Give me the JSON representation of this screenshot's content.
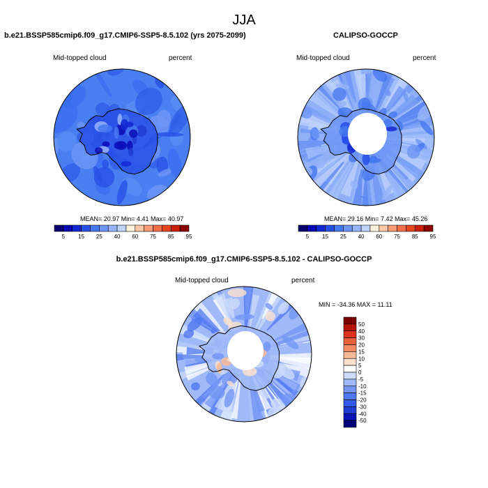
{
  "suptitle": "JJA",
  "panels": [
    {
      "title": "b.e21.BSSP585cmip6.f09_g17.CMIP6-SSP5-8.5.102 (yrs 2075-2099)",
      "left_label": "Mid-topped cloud",
      "right_label": "percent",
      "stats": "MEAN=  20.97  Min=   4.41  Max=  40.97"
    },
    {
      "title": "CALIPSO-GOCCP",
      "left_label": "Mid-topped cloud",
      "right_label": "percent",
      "stats": "MEAN=  29.16  Min=   7.42  Max=  45.26"
    },
    {
      "title": "b.e21.BSSP585cmip6.f09_g17.CMIP6-SSP5-8.5.102 - CALIPSO-GOCCP",
      "left_label": "Mid-topped cloud",
      "right_label": "percent",
      "stats": "MIN = -34.36 MAX =  11.11"
    }
  ],
  "colors": {
    "seq": [
      "#08006e",
      "#0a0ab4",
      "#1428d2",
      "#2850e6",
      "#4678f0",
      "#6e96f5",
      "#96b4f8",
      "#bed2fa",
      "#fff2dc",
      "#fcc8a8",
      "#fa9b78",
      "#f56e4b",
      "#e6461e",
      "#c81e0a",
      "#8c0000"
    ],
    "diff": [
      "#000078",
      "#0a14b4",
      "#1e3cd2",
      "#325ae6",
      "#5078f0",
      "#7396f5",
      "#a0b9f8",
      "#cddcfa",
      "#ffffff",
      "#fae1cd",
      "#f8b996",
      "#f58c64",
      "#eb5f3c",
      "#dc321e",
      "#b4140a",
      "#780000"
    ]
  },
  "chart_data": [
    {
      "type": "heatmap",
      "projection": "south-polar-stereographic",
      "title": "b.e21.BSSP585cmip6.f09_g17.CMIP6-SSP5-8.5.102 (yrs 2075-2099)",
      "variable": "Mid-topped cloud",
      "units": "percent",
      "mean": 20.97,
      "min": 4.41,
      "max": 40.97,
      "colorbar_ticks": [
        "5",
        "15",
        "25",
        "40",
        "60",
        "75",
        "85",
        "95"
      ],
      "colorbar_levels": [
        5,
        10,
        15,
        20,
        25,
        30,
        35,
        40,
        50,
        60,
        65,
        75,
        80,
        85,
        90,
        95
      ]
    },
    {
      "type": "heatmap",
      "projection": "south-polar-stereographic",
      "title": "CALIPSO-GOCCP",
      "variable": "Mid-topped cloud",
      "units": "percent",
      "mean": 29.16,
      "min": 7.42,
      "max": 45.26,
      "colorbar_ticks": [
        "5",
        "15",
        "25",
        "40",
        "60",
        "75",
        "85",
        "95"
      ],
      "colorbar_levels": [
        5,
        10,
        15,
        20,
        25,
        30,
        35,
        40,
        50,
        60,
        65,
        75,
        80,
        85,
        90,
        95
      ]
    },
    {
      "type": "heatmap",
      "projection": "south-polar-stereographic",
      "title": "b.e21.BSSP585cmip6.f09_g17.CMIP6-SSP5-8.5.102 - CALIPSO-GOCCP",
      "variable": "Mid-topped cloud",
      "units": "percent",
      "min": -34.36,
      "max": 11.11,
      "colorbar_orientation": "vertical",
      "colorbar_ticks": [
        "50",
        "40",
        "30",
        "20",
        "15",
        "10",
        "5",
        "0",
        "-5",
        "-10",
        "-15",
        "-20",
        "-30",
        "-40",
        "-50"
      ]
    }
  ]
}
